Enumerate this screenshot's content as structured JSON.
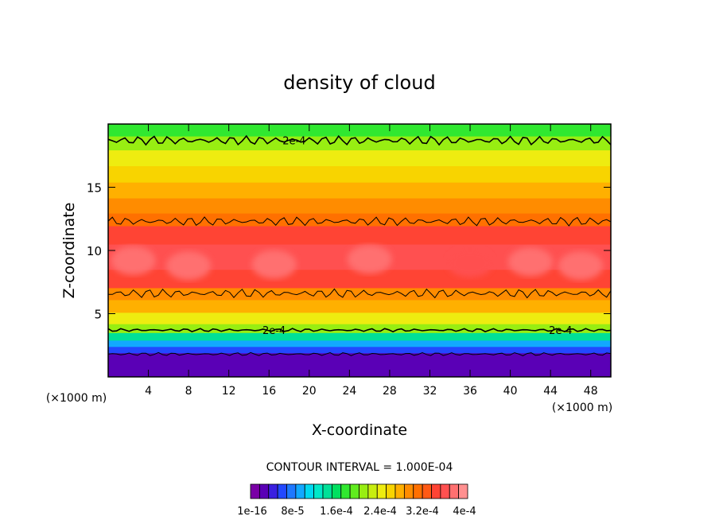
{
  "chart_data": {
    "type": "heatmap",
    "title": "density of cloud",
    "xlabel": "X-coordinate",
    "ylabel": "Z-coordinate",
    "x_unit": "(×1000 m)",
    "xlim": [
      0,
      50
    ],
    "ylim": [
      0,
      20
    ],
    "x_ticks": [
      "4",
      "8",
      "12",
      "16",
      "20",
      "24",
      "28",
      "32",
      "36",
      "40",
      "44",
      "48"
    ],
    "y_ticks": [
      "5",
      "10",
      "15"
    ],
    "contour_interval_text": "CONTOUR INTERVAL = 1.000E-04",
    "contour_label": "2e-4",
    "contour_lines_z": [
      1.8,
      3.7,
      6.6,
      12.3,
      18.7
    ],
    "colorbar_labels": [
      "1e-16",
      "8e-5",
      "1.6e-4",
      "2.4e-4",
      "3.2e-4",
      "4e-4"
    ],
    "colorbar_colors": [
      "#7a00a6",
      "#5a00b6",
      "#3a1fe0",
      "#2248ff",
      "#1e78ff",
      "#12a8ff",
      "#00d8f0",
      "#00e8c8",
      "#00e098",
      "#00e060",
      "#30e830",
      "#60ec1e",
      "#98ee12",
      "#c8ee10",
      "#eeec10",
      "#f8d400",
      "#ffb000",
      "#ff8c00",
      "#ff7000",
      "#ff5a14",
      "#ff4434",
      "#ff5050",
      "#ff7070",
      "#ff9090"
    ],
    "vertical_profile": [
      {
        "z": 1.0,
        "value": 2e-05
      },
      {
        "z": 1.6,
        "value": 3e-05
      },
      {
        "z": 2.2,
        "value": 6e-05
      },
      {
        "z": 2.6,
        "value": 9e-05
      },
      {
        "z": 3.2,
        "value": 0.00015
      },
      {
        "z": 3.8,
        "value": 0.0002
      },
      {
        "z": 4.6,
        "value": 0.00024
      },
      {
        "z": 5.6,
        "value": 0.00028
      },
      {
        "z": 6.6,
        "value": 0.0003
      },
      {
        "z": 7.5,
        "value": 0.00034
      },
      {
        "z": 9.5,
        "value": 0.00035
      },
      {
        "z": 11.5,
        "value": 0.00034
      },
      {
        "z": 12.4,
        "value": 0.00031
      },
      {
        "z": 13.5,
        "value": 0.00029
      },
      {
        "z": 14.8,
        "value": 0.00028
      },
      {
        "z": 16.0,
        "value": 0.00026
      },
      {
        "z": 17.4,
        "value": 0.00024
      },
      {
        "z": 18.5,
        "value": 0.00021
      },
      {
        "z": 19.6,
        "value": 0.00018
      }
    ],
    "core_max_blobs": [
      {
        "x": 2.5,
        "z": 9.2,
        "value": 0.00037
      },
      {
        "x": 8,
        "z": 8.8,
        "value": 0.00037
      },
      {
        "x": 16.5,
        "z": 8.9,
        "value": 0.00037
      },
      {
        "x": 26,
        "z": 9.3,
        "value": 0.00037
      },
      {
        "x": 36,
        "z": 9.0,
        "value": 0.00036
      },
      {
        "x": 42,
        "z": 9.1,
        "value": 0.00037
      },
      {
        "x": 47,
        "z": 8.8,
        "value": 0.00037
      }
    ]
  }
}
